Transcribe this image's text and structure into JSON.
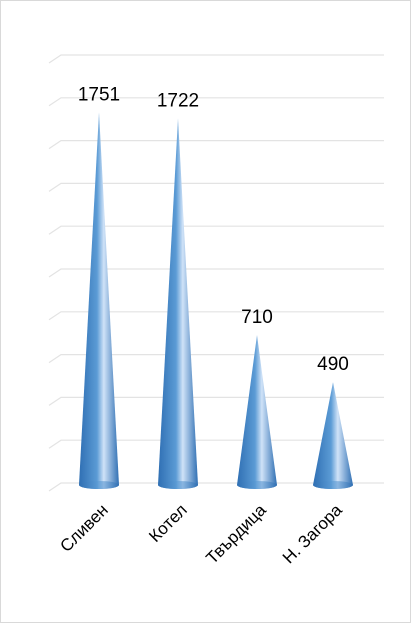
{
  "chart_data": {
    "type": "bar",
    "bar_shape": "cone",
    "categories": [
      "Сливен",
      "Котел",
      "Твърдица",
      "Н. Загора"
    ],
    "values": [
      1751,
      1722,
      710,
      490
    ],
    "title": "",
    "xlabel": "",
    "ylabel": "",
    "ylim": [
      0,
      2000
    ],
    "grid": true,
    "legend": "none",
    "data_labels": true,
    "colors": {
      "bar_dark": "#2f6fb3",
      "bar_mid": "#5b9bd5",
      "bar_light": "#cfe2f7",
      "grid": "#e3e3e3",
      "text": "#000000"
    }
  }
}
